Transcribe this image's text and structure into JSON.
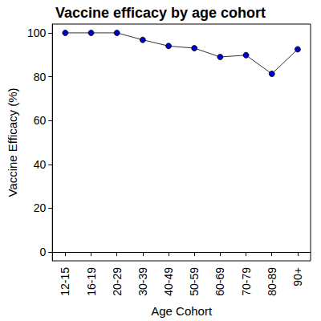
{
  "chart_data": {
    "type": "line",
    "title": "Vaccine efficacy by age cohort",
    "x_label": "Age Cohort",
    "y_label": "Vaccine Efficacy (%)",
    "categories": [
      "12-15",
      "16-19",
      "20-29",
      "30-39",
      "40-49",
      "50-59",
      "60-69",
      "70-79",
      "80-89",
      "90+"
    ],
    "values": [
      100,
      100,
      100,
      96.8,
      94,
      93,
      89,
      89.8,
      81.3,
      92.5
    ],
    "color": "#0000cd",
    "marker": "circle",
    "line_style": "solid",
    "ylim": [
      -4,
      104
    ],
    "yticks": [
      0,
      20,
      40,
      60,
      80,
      100
    ],
    "grid": false
  }
}
